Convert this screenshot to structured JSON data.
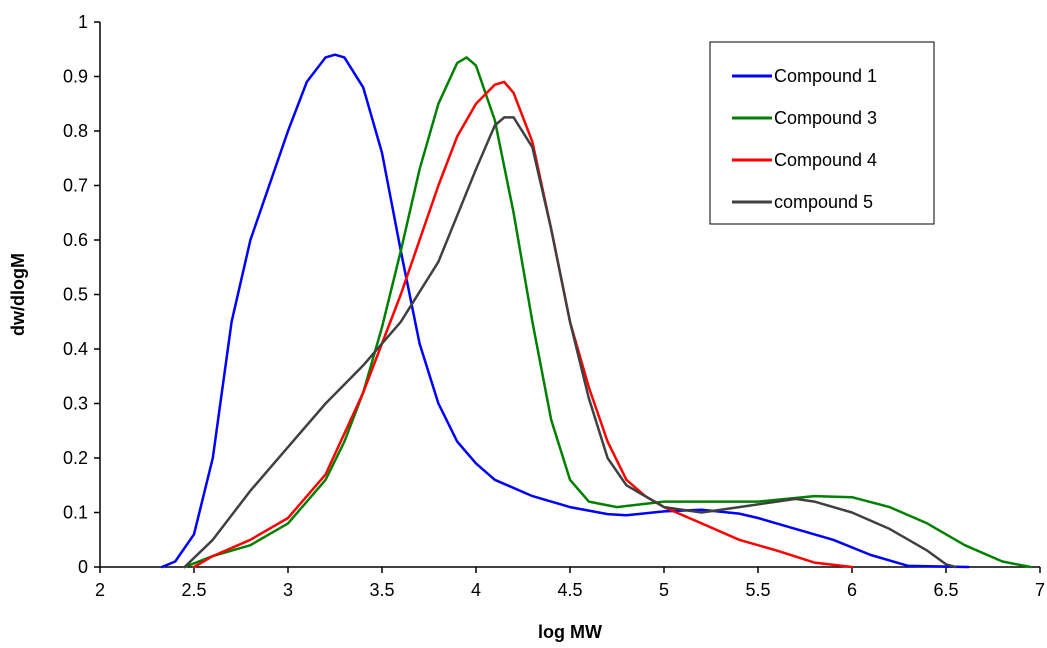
{
  "chart_data": {
    "type": "line",
    "xlabel": "log MW",
    "ylabel": "dw/dlogM",
    "xlim": [
      2,
      7
    ],
    "ylim": [
      0,
      1
    ],
    "x_ticks": [
      "2",
      "2.5",
      "3",
      "3.5",
      "4",
      "4.5",
      "5",
      "5.5",
      "6",
      "6.5",
      "7"
    ],
    "y_ticks": [
      "0",
      "0.1",
      "0.2",
      "0.3",
      "0.4",
      "0.5",
      "0.6",
      "0.7",
      "0.8",
      "0.9",
      "1"
    ],
    "grid": false,
    "legend": "top-right",
    "series": [
      {
        "name": "Compound 1",
        "color": "#0000ff",
        "points": [
          [
            2.33,
            0.0
          ],
          [
            2.4,
            0.01
          ],
          [
            2.5,
            0.06
          ],
          [
            2.6,
            0.2
          ],
          [
            2.7,
            0.45
          ],
          [
            2.8,
            0.6
          ],
          [
            2.9,
            0.7
          ],
          [
            3.0,
            0.8
          ],
          [
            3.1,
            0.89
          ],
          [
            3.2,
            0.935
          ],
          [
            3.25,
            0.94
          ],
          [
            3.3,
            0.935
          ],
          [
            3.4,
            0.88
          ],
          [
            3.5,
            0.76
          ],
          [
            3.6,
            0.58
          ],
          [
            3.7,
            0.41
          ],
          [
            3.8,
            0.3
          ],
          [
            3.9,
            0.23
          ],
          [
            4.0,
            0.19
          ],
          [
            4.1,
            0.16
          ],
          [
            4.3,
            0.13
          ],
          [
            4.5,
            0.11
          ],
          [
            4.7,
            0.097
          ],
          [
            4.8,
            0.095
          ],
          [
            5.0,
            0.102
          ],
          [
            5.2,
            0.105
          ],
          [
            5.4,
            0.098
          ],
          [
            5.5,
            0.09
          ],
          [
            5.7,
            0.07
          ],
          [
            5.9,
            0.05
          ],
          [
            6.1,
            0.022
          ],
          [
            6.3,
            0.002
          ],
          [
            6.62,
            0.0
          ]
        ]
      },
      {
        "name": "Compound 3",
        "color": "#008000",
        "points": [
          [
            2.45,
            0.0
          ],
          [
            2.6,
            0.02
          ],
          [
            2.8,
            0.04
          ],
          [
            3.0,
            0.08
          ],
          [
            3.2,
            0.16
          ],
          [
            3.3,
            0.23
          ],
          [
            3.4,
            0.32
          ],
          [
            3.5,
            0.44
          ],
          [
            3.6,
            0.58
          ],
          [
            3.7,
            0.73
          ],
          [
            3.8,
            0.85
          ],
          [
            3.9,
            0.925
          ],
          [
            3.95,
            0.935
          ],
          [
            4.0,
            0.92
          ],
          [
            4.1,
            0.82
          ],
          [
            4.2,
            0.65
          ],
          [
            4.3,
            0.45
          ],
          [
            4.4,
            0.27
          ],
          [
            4.5,
            0.16
          ],
          [
            4.6,
            0.12
          ],
          [
            4.75,
            0.11
          ],
          [
            5.0,
            0.12
          ],
          [
            5.3,
            0.12
          ],
          [
            5.5,
            0.12
          ],
          [
            5.8,
            0.13
          ],
          [
            6.0,
            0.128
          ],
          [
            6.2,
            0.11
          ],
          [
            6.4,
            0.08
          ],
          [
            6.6,
            0.04
          ],
          [
            6.8,
            0.01
          ],
          [
            6.95,
            0.0
          ]
        ]
      },
      {
        "name": "Compound 4",
        "color": "#ff0000",
        "points": [
          [
            2.5,
            0.0
          ],
          [
            2.6,
            0.02
          ],
          [
            2.8,
            0.05
          ],
          [
            3.0,
            0.09
          ],
          [
            3.2,
            0.17
          ],
          [
            3.4,
            0.32
          ],
          [
            3.6,
            0.5
          ],
          [
            3.7,
            0.6
          ],
          [
            3.8,
            0.7
          ],
          [
            3.9,
            0.79
          ],
          [
            4.0,
            0.85
          ],
          [
            4.1,
            0.885
          ],
          [
            4.15,
            0.89
          ],
          [
            4.2,
            0.87
          ],
          [
            4.3,
            0.78
          ],
          [
            4.4,
            0.62
          ],
          [
            4.5,
            0.45
          ],
          [
            4.6,
            0.33
          ],
          [
            4.7,
            0.23
          ],
          [
            4.8,
            0.16
          ],
          [
            4.9,
            0.13
          ],
          [
            5.0,
            0.11
          ],
          [
            5.2,
            0.08
          ],
          [
            5.4,
            0.05
          ],
          [
            5.6,
            0.03
          ],
          [
            5.8,
            0.008
          ],
          [
            6.0,
            0.0
          ]
        ]
      },
      {
        "name": "compound 5",
        "color": "#404040",
        "points": [
          [
            2.45,
            0.0
          ],
          [
            2.6,
            0.05
          ],
          [
            2.8,
            0.14
          ],
          [
            3.0,
            0.22
          ],
          [
            3.2,
            0.3
          ],
          [
            3.4,
            0.37
          ],
          [
            3.6,
            0.45
          ],
          [
            3.8,
            0.56
          ],
          [
            4.0,
            0.73
          ],
          [
            4.1,
            0.81
          ],
          [
            4.15,
            0.825
          ],
          [
            4.2,
            0.825
          ],
          [
            4.3,
            0.77
          ],
          [
            4.4,
            0.62
          ],
          [
            4.5,
            0.45
          ],
          [
            4.6,
            0.31
          ],
          [
            4.7,
            0.2
          ],
          [
            4.8,
            0.15
          ],
          [
            5.0,
            0.11
          ],
          [
            5.2,
            0.1
          ],
          [
            5.4,
            0.11
          ],
          [
            5.6,
            0.12
          ],
          [
            5.7,
            0.125
          ],
          [
            5.8,
            0.12
          ],
          [
            6.0,
            0.1
          ],
          [
            6.2,
            0.07
          ],
          [
            6.4,
            0.03
          ],
          [
            6.5,
            0.005
          ],
          [
            6.55,
            0.0
          ]
        ]
      }
    ]
  }
}
